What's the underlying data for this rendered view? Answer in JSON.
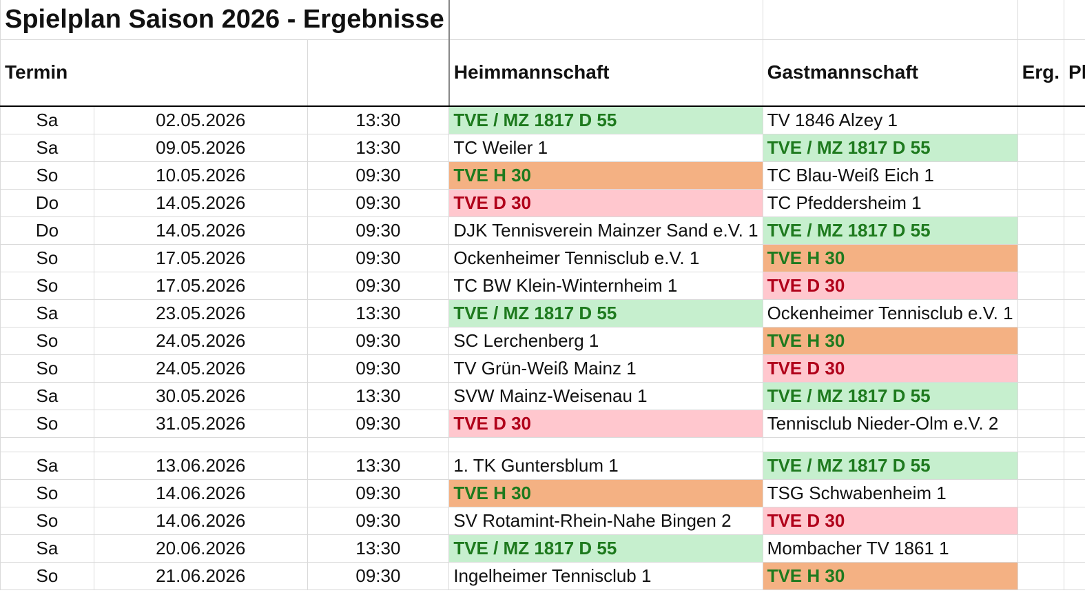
{
  "title": "Spielplan Saison 2026 - Ergebnisse",
  "header": {
    "termin": "Termin",
    "home": "Heimmannschaft",
    "guest": "Gastmannschaft",
    "result": "Erg.",
    "venue": "Platz"
  },
  "highlights": [
    {
      "team": "TVE / MZ 1817 D 55",
      "background": "#c6efce",
      "color": "#1e7a1e"
    },
    {
      "team": "TVE H 30",
      "background": "#f4b183",
      "color": "#1e7a1e"
    },
    {
      "team": "TVE D 30",
      "background": "#ffc7ce",
      "color": "#b0001a"
    }
  ],
  "rows": [
    [
      "Sa",
      "02.05.2026",
      "13:30",
      "TVE / MZ 1817 D 55",
      "TV 1846 Alzey 1"
    ],
    [
      "Sa",
      "09.05.2026",
      "13:30",
      "TC Weiler 1",
      "TVE / MZ 1817 D 55"
    ],
    [
      "So",
      "10.05.2026",
      "09:30",
      "TVE H 30",
      "TC Blau-Weiß Eich 1"
    ],
    [
      "Do",
      "14.05.2026",
      "09:30",
      "TVE D 30",
      "TC Pfeddersheim 1"
    ],
    [
      "Do",
      "14.05.2026",
      "09:30",
      "DJK Tennisverein Mainzer Sand e.V. 1",
      "TVE / MZ 1817 D 55"
    ],
    [
      "So",
      "17.05.2026",
      "09:30",
      "Ockenheimer Tennisclub e.V. 1",
      "TVE H 30"
    ],
    [
      "So",
      "17.05.2026",
      "09:30",
      "TC BW Klein-Winternheim 1",
      "TVE D 30"
    ],
    [
      "Sa",
      "23.05.2026",
      "13:30",
      "TVE / MZ 1817 D 55",
      "Ockenheimer Tennisclub e.V. 1"
    ],
    [
      "So",
      "24.05.2026",
      "09:30",
      "SC Lerchenberg 1",
      "TVE H 30"
    ],
    [
      "So",
      "24.05.2026",
      "09:30",
      "TV Grün-Weiß Mainz 1",
      "TVE D 30"
    ],
    [
      "Sa",
      "30.05.2026",
      "13:30",
      "SVW Mainz-Weisenau 1",
      "TVE / MZ 1817 D 55"
    ],
    [
      "So",
      "31.05.2026",
      "09:30",
      "TVE D 30",
      "Tennisclub Nieder-Olm e.V. 2"
    ],
    null,
    [
      "Sa",
      "13.06.2026",
      "13:30",
      "1. TK Guntersblum 1",
      "TVE / MZ 1817 D 55"
    ],
    [
      "So",
      "14.06.2026",
      "09:30",
      "TVE H 30",
      "TSG Schwabenheim 1"
    ],
    [
      "So",
      "14.06.2026",
      "09:30",
      "SV Rotamint-Rhein-Nahe Bingen 2",
      "TVE D 30"
    ],
    [
      "Sa",
      "20.06.2026",
      "13:30",
      "TVE / MZ 1817 D 55",
      "Mombacher TV 1861 1"
    ],
    [
      "So",
      "21.06.2026",
      "09:30",
      "Ingelheimer Tennisclub 1",
      "TVE H 30"
    ]
  ]
}
